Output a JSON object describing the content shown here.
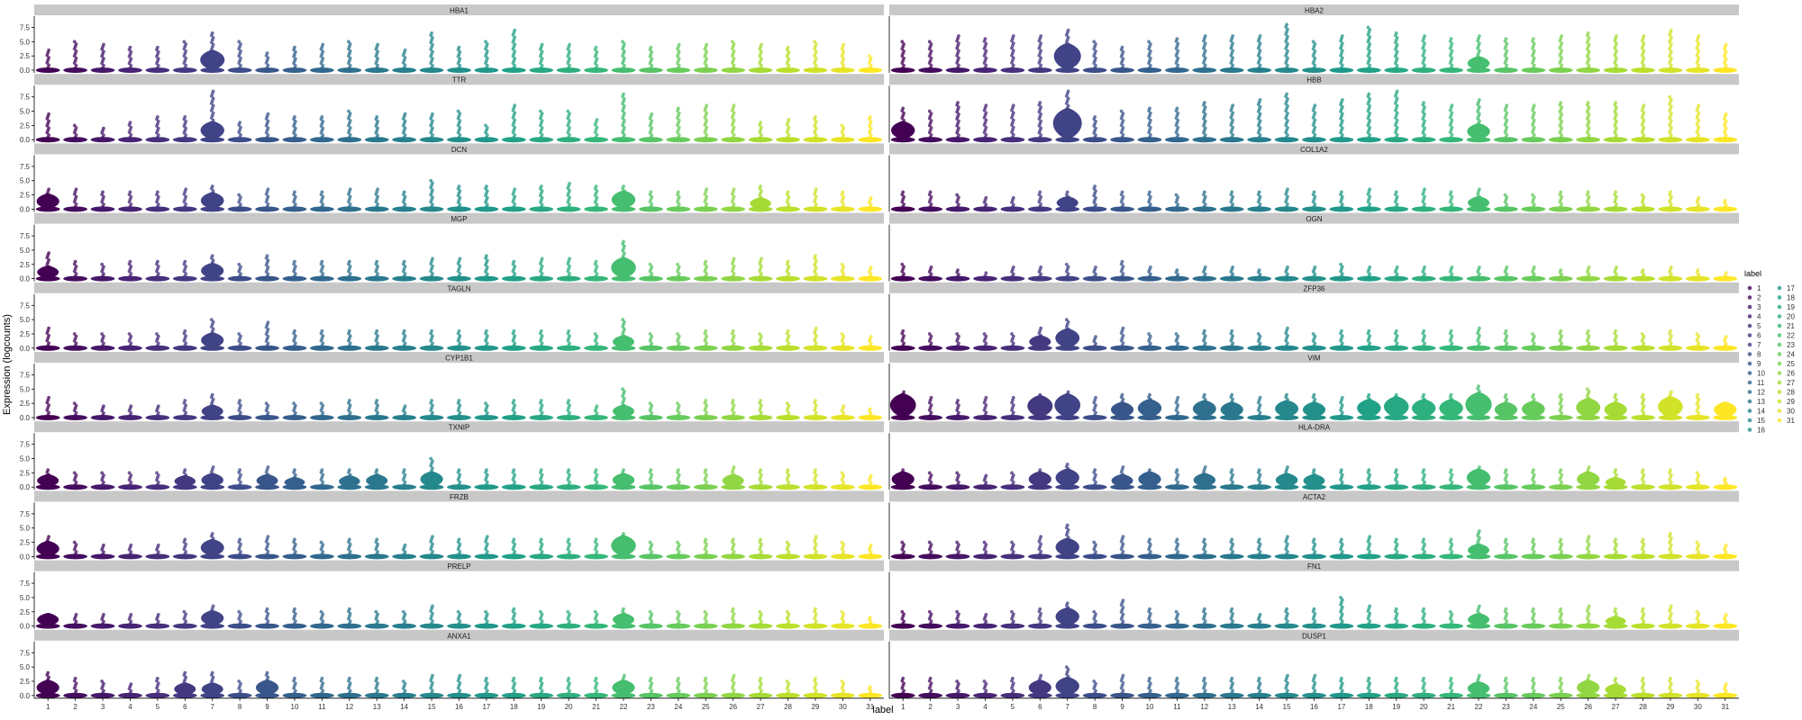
{
  "chart_data": {
    "type": "violin",
    "xlabel": "label",
    "ylabel": "Expression (logcounts)",
    "categories": [
      "1",
      "2",
      "3",
      "4",
      "5",
      "6",
      "7",
      "8",
      "9",
      "10",
      "11",
      "12",
      "13",
      "14",
      "15",
      "16",
      "17",
      "18",
      "19",
      "20",
      "21",
      "22",
      "23",
      "24",
      "25",
      "26",
      "27",
      "28",
      "29",
      "30",
      "31"
    ],
    "yticks": [
      "0.0",
      "2.5",
      "5.0",
      "7.5"
    ],
    "ylim": [
      0,
      9
    ],
    "legend": {
      "title": "label",
      "position": "right",
      "entries": [
        "1",
        "2",
        "3",
        "4",
        "5",
        "6",
        "7",
        "8",
        "9",
        "10",
        "11",
        "12",
        "13",
        "14",
        "15",
        "16",
        "17",
        "18",
        "19",
        "20",
        "21",
        "22",
        "23",
        "24",
        "25",
        "26",
        "27",
        "28",
        "29",
        "30",
        "31"
      ]
    },
    "colormap": "viridis",
    "colors": {
      "strip_background": "#c8c8c8",
      "viridis_low": "#440154",
      "viridis_high": "#fde725"
    },
    "facets": [
      {
        "gene": "HBA1",
        "max": [
          3.5,
          5,
          4.5,
          4,
          4,
          5,
          6.5,
          5,
          3,
          4,
          4.5,
          5,
          4.5,
          3.5,
          6.5,
          4,
          5,
          7,
          4.5,
          4.5,
          4,
          5,
          4,
          4.5,
          4.5,
          5,
          4.5,
          4,
          5,
          4.5,
          2.5
        ],
        "violin": [
          0,
          0,
          0,
          0,
          0,
          0,
          3.3,
          0,
          0,
          0,
          0,
          0,
          0,
          0,
          0,
          0,
          0,
          0,
          0,
          0,
          0,
          0,
          0,
          0,
          0,
          0,
          0,
          0,
          0,
          0,
          0
        ]
      },
      {
        "gene": "HBA2",
        "max": [
          5,
          5,
          6,
          5.5,
          6,
          6,
          7,
          5,
          4,
          5,
          5.5,
          6,
          6,
          6,
          8,
          5,
          6,
          7.5,
          6.5,
          6,
          5.5,
          6,
          5.5,
          5.5,
          6,
          6.5,
          6,
          6,
          7,
          6,
          4.5
        ],
        "violin": [
          0,
          0,
          0,
          0,
          0,
          0,
          4.5,
          0,
          0,
          0,
          0,
          0,
          0,
          0,
          0,
          0,
          0,
          0,
          0,
          0,
          0,
          2.2,
          0,
          0,
          0,
          0,
          0,
          0,
          0,
          0,
          0
        ]
      },
      {
        "gene": "TTR",
        "max": [
          4.5,
          2.5,
          2,
          3,
          4,
          4,
          8.5,
          3,
          4.5,
          4,
          4,
          5,
          4,
          4.5,
          4.5,
          5,
          2.5,
          6,
          5,
          5,
          3.5,
          8,
          4.5,
          5.5,
          6,
          6,
          3,
          3.5,
          4,
          2.5,
          4
        ],
        "violin": [
          0,
          0,
          0,
          0,
          0,
          0,
          3,
          0,
          0,
          0,
          0,
          0,
          0,
          0,
          0,
          0,
          0,
          0,
          0,
          0,
          0,
          0,
          0,
          0,
          0,
          0,
          0,
          0,
          0,
          0,
          0
        ]
      },
      {
        "gene": "HBB",
        "max": [
          5.5,
          5,
          6.5,
          6,
          6,
          6.5,
          8.5,
          4,
          5,
          5.5,
          5.5,
          6.5,
          6,
          7,
          8,
          6,
          7,
          8,
          8.5,
          6.5,
          6,
          7,
          6,
          6,
          6.5,
          6.5,
          6.5,
          6,
          7.5,
          6,
          4.5
        ],
        "violin": [
          3,
          0,
          0,
          0,
          0,
          0,
          5.3,
          0,
          0,
          0,
          0,
          0,
          0,
          0,
          0,
          0,
          0,
          0,
          0,
          0,
          0,
          2.6,
          0,
          0,
          0,
          0,
          0,
          0,
          0,
          0,
          0
        ]
      },
      {
        "gene": "DCN",
        "max": [
          3.5,
          3.5,
          3,
          3,
          3,
          3.5,
          4,
          2.5,
          3.5,
          3,
          3,
          3.5,
          3.5,
          3,
          5,
          4,
          4,
          3.5,
          4,
          4.5,
          4,
          4,
          3,
          3,
          3.5,
          3.5,
          4,
          3,
          3.5,
          3,
          2
        ],
        "violin": [
          2.5,
          0,
          0,
          0,
          0,
          0,
          2.7,
          0,
          0,
          0,
          0,
          0,
          0,
          0,
          0,
          0,
          0,
          0,
          0,
          0,
          0,
          3,
          0,
          0,
          0,
          0,
          1.8,
          0,
          0,
          0,
          0
        ]
      },
      {
        "gene": "COL1A2",
        "max": [
          3,
          3,
          2.5,
          2,
          2,
          3,
          3,
          4,
          3,
          3,
          2.5,
          3,
          3,
          3,
          3.5,
          3,
          3,
          3.5,
          3,
          3.5,
          3,
          3.5,
          2.5,
          2.5,
          3,
          3,
          3,
          2.5,
          3,
          2,
          1.5
        ],
        "violin": [
          0,
          0,
          0,
          0,
          0,
          0,
          2,
          0,
          0,
          0,
          0,
          0,
          0,
          0,
          0,
          0,
          0,
          0,
          0,
          0,
          0,
          2,
          0,
          0,
          0,
          0,
          0,
          0,
          0,
          0,
          0
        ]
      },
      {
        "gene": "MGP",
        "max": [
          4.5,
          3,
          2.5,
          3,
          3,
          3,
          4,
          2.5,
          4,
          3,
          3,
          3,
          3,
          3,
          3.5,
          3.5,
          4,
          3,
          3.5,
          3.5,
          3,
          6.5,
          2.5,
          2.5,
          3,
          3.5,
          3.5,
          3,
          4,
          2.5,
          2
        ],
        "violin": [
          2,
          0,
          0,
          0,
          0,
          0,
          2.5,
          0,
          0,
          0,
          0,
          0,
          0,
          0,
          0,
          0,
          0,
          0,
          0,
          0,
          0,
          3.5,
          0,
          0,
          0,
          0,
          0,
          0,
          0,
          0,
          0
        ]
      },
      {
        "gene": "OGN",
        "max": [
          2.5,
          2,
          1.5,
          1,
          2,
          2,
          2.5,
          2,
          3,
          2,
          1.5,
          2,
          2,
          1.5,
          2,
          2,
          2.5,
          2,
          2,
          2,
          2,
          2,
          2,
          2,
          1.5,
          2,
          2,
          1.5,
          2,
          1.5,
          1
        ],
        "violin": [
          0,
          0,
          0,
          0,
          0,
          0,
          0,
          0,
          0,
          0,
          0,
          0,
          0,
          0,
          0,
          0,
          0,
          0,
          0,
          0,
          0,
          0,
          0,
          0,
          0,
          0,
          0,
          0,
          0,
          0,
          0
        ]
      },
      {
        "gene": "TAGLN",
        "max": [
          3.5,
          2.5,
          2.5,
          2.5,
          2.5,
          3,
          5,
          2.5,
          4.5,
          3,
          3,
          3,
          3,
          3,
          3,
          3,
          3,
          3,
          3,
          3,
          2.5,
          5,
          2.5,
          2.5,
          3,
          3,
          2.5,
          3,
          3.5,
          2.5,
          2
        ],
        "violin": [
          0,
          0,
          0,
          0,
          0,
          0,
          2.5,
          0,
          0,
          0,
          0,
          0,
          0,
          0,
          0,
          0,
          0,
          0,
          0,
          0,
          0,
          2,
          0,
          0,
          0,
          0,
          0,
          0,
          0,
          0,
          0
        ]
      },
      {
        "gene": "ZFP36",
        "max": [
          3,
          2.5,
          2.5,
          2.5,
          2.5,
          3.5,
          5,
          2,
          3.5,
          2.5,
          2.5,
          3,
          3,
          2.5,
          3.5,
          2.5,
          3,
          3,
          3,
          3,
          3,
          3.5,
          3,
          2.5,
          3,
          3,
          3,
          2.5,
          3,
          2.5,
          2
        ],
        "violin": [
          0,
          0,
          0,
          0,
          0,
          2,
          3.2,
          0,
          0,
          0,
          0,
          0,
          0,
          0,
          0,
          0,
          0,
          0,
          0,
          0,
          0,
          0,
          0,
          0,
          0,
          0,
          0,
          0,
          0,
          0,
          0
        ]
      },
      {
        "gene": "CYP1B1",
        "max": [
          3.5,
          2.5,
          2,
          2,
          2,
          3,
          4,
          3,
          2.5,
          2.5,
          2.5,
          3,
          3,
          2,
          3,
          3,
          2.5,
          3,
          3,
          3,
          2,
          5,
          2.5,
          2.5,
          3,
          3,
          3,
          2.5,
          3,
          2,
          1.5
        ],
        "violin": [
          0,
          0,
          0,
          0,
          0,
          0,
          2,
          0,
          0,
          0,
          0,
          0,
          0,
          0,
          0,
          0,
          0,
          0,
          0,
          0,
          0,
          2,
          0,
          0,
          0,
          0,
          0,
          0,
          0,
          0,
          0
        ]
      },
      {
        "gene": "VIM",
        "max": [
          4.5,
          3.5,
          3,
          3.5,
          3.5,
          4,
          4.5,
          3.5,
          4,
          4,
          3.5,
          4,
          4,
          3.5,
          4,
          4,
          3.5,
          4,
          4,
          4,
          4,
          5.5,
          4,
          4,
          4,
          5,
          4,
          4,
          4.5,
          4,
          2.5
        ],
        "violin": [
          4,
          0,
          0,
          0,
          0,
          3.7,
          4,
          0,
          2.5,
          3,
          0,
          2.8,
          2.5,
          0,
          2.8,
          2.5,
          0,
          3,
          3.5,
          3,
          3,
          4.2,
          2.5,
          2.7,
          0,
          3.2,
          2.5,
          0,
          3.5,
          0,
          2.5
        ]
      },
      {
        "gene": "TXNIP",
        "max": [
          3,
          2.5,
          2.5,
          2.5,
          2.5,
          3,
          3.5,
          3,
          3.5,
          3,
          3,
          3,
          3,
          3,
          5,
          3,
          3,
          3,
          3,
          3,
          3,
          3,
          3,
          3,
          3,
          3.5,
          3,
          3,
          3,
          2.5,
          2
        ],
        "violin": [
          2,
          0,
          0,
          0,
          0,
          1.8,
          2.2,
          0,
          2,
          1.5,
          0,
          1.8,
          2,
          0,
          2.5,
          0,
          0,
          0,
          0,
          0,
          0,
          2.2,
          0,
          0,
          0,
          2,
          0,
          0,
          0,
          0,
          0
        ]
      },
      {
        "gene": "HLA-DRA",
        "max": [
          3,
          2.5,
          2.5,
          2,
          2.5,
          3,
          4,
          3,
          3.5,
          3,
          3,
          3.5,
          3,
          3,
          3.5,
          3,
          3,
          3,
          3,
          3,
          3,
          3.5,
          3,
          3,
          3,
          3.5,
          3,
          3,
          3,
          2.5,
          1.5
        ],
        "violin": [
          2.5,
          0,
          0,
          0,
          0,
          2.5,
          3,
          0,
          2,
          2.5,
          0,
          2.2,
          0,
          0,
          2.2,
          2,
          0,
          0,
          0,
          0,
          0,
          3,
          0,
          0,
          0,
          2.5,
          1.5,
          0,
          0,
          0,
          0
        ]
      },
      {
        "gene": "FRZB",
        "max": [
          3.5,
          2.5,
          2,
          2,
          2,
          3,
          4,
          3,
          3.5,
          3,
          2.5,
          3,
          3,
          2,
          3.5,
          3,
          3.5,
          3,
          3,
          3,
          3,
          4,
          2.5,
          2.5,
          3,
          3,
          3,
          2.5,
          3.5,
          2.5,
          2
        ],
        "violin": [
          2.5,
          0,
          0,
          0,
          0,
          0,
          2.8,
          0,
          0,
          0,
          0,
          0,
          0,
          0,
          0,
          0,
          0,
          0,
          0,
          0,
          0,
          3.5,
          0,
          0,
          0,
          0,
          0,
          0,
          0,
          0,
          0
        ]
      },
      {
        "gene": "ACTA2",
        "max": [
          2.5,
          2.5,
          2.5,
          2.5,
          2.5,
          3.5,
          5.5,
          2.5,
          3.5,
          3,
          3,
          3,
          3,
          3,
          3.5,
          3,
          3,
          3.5,
          3,
          3,
          3,
          4.5,
          3,
          3,
          3,
          3.5,
          3,
          3,
          4,
          2.5,
          2
        ],
        "violin": [
          0,
          0,
          0,
          0,
          0,
          0,
          3,
          0,
          0,
          0,
          0,
          0,
          0,
          0,
          0,
          0,
          0,
          0,
          0,
          0,
          0,
          2,
          0,
          0,
          0,
          0,
          0,
          0,
          0,
          0,
          0
        ]
      },
      {
        "gene": "PRELP",
        "max": [
          2,
          2,
          2,
          2,
          2,
          2.5,
          3.5,
          2.5,
          3,
          3,
          2.5,
          3,
          2.5,
          2.5,
          3.5,
          2.5,
          2.5,
          3,
          2.5,
          2.5,
          2.5,
          3,
          2.5,
          2.5,
          2.5,
          3,
          2.5,
          2.5,
          3,
          2.5,
          1.5
        ],
        "violin": [
          2,
          0,
          0,
          0,
          0,
          0,
          2.5,
          0,
          0,
          0,
          0,
          0,
          0,
          0,
          0,
          0,
          0,
          0,
          0,
          0,
          0,
          2,
          0,
          0,
          0,
          0,
          0,
          0,
          0,
          0,
          0
        ]
      },
      {
        "gene": "FN1",
        "max": [
          2.5,
          2.5,
          2.5,
          2,
          2.5,
          3,
          4,
          2.5,
          4.5,
          3,
          2.5,
          3,
          3,
          2,
          3,
          3,
          5,
          3.5,
          3,
          3,
          2.5,
          3.5,
          3,
          3,
          3,
          3.5,
          3,
          3,
          3.5,
          2.5,
          2
        ],
        "violin": [
          0,
          0,
          0,
          0,
          0,
          0,
          3,
          0,
          0,
          0,
          0,
          0,
          0,
          0,
          0,
          0,
          0,
          0,
          0,
          0,
          0,
          2,
          0,
          0,
          0,
          0,
          1.5,
          0,
          0,
          0,
          0
        ]
      },
      {
        "gene": "ANXA1",
        "max": [
          4,
          3,
          2.5,
          2,
          3,
          4,
          4,
          2.5,
          4,
          3,
          3,
          3,
          3,
          2.5,
          3.5,
          3.5,
          3,
          3,
          3,
          3,
          3,
          3.5,
          3,
          3,
          3,
          3.5,
          3,
          2.5,
          3,
          2.5,
          1.5
        ],
        "violin": [
          2.5,
          0,
          0,
          0,
          0,
          2,
          2,
          0,
          2.5,
          0,
          0,
          0,
          0,
          0,
          0,
          0,
          0,
          0,
          0,
          0,
          0,
          2.5,
          0,
          0,
          0,
          0,
          0,
          0,
          0,
          0,
          0
        ]
      },
      {
        "gene": "DUSP1",
        "max": [
          3,
          3,
          2.5,
          2.5,
          3,
          3.5,
          5,
          2.5,
          3.5,
          3,
          3,
          3,
          3,
          3,
          3.5,
          3.5,
          3,
          3,
          3,
          3,
          3,
          3.5,
          3,
          3,
          3,
          3.5,
          3,
          3,
          3,
          2.5,
          2
        ],
        "violin": [
          0,
          0,
          0,
          0,
          0,
          2.5,
          3,
          0,
          0,
          0,
          0,
          0,
          0,
          0,
          0,
          0,
          0,
          0,
          0,
          0,
          0,
          2.2,
          0,
          0,
          0,
          2.5,
          1.8,
          0,
          0,
          0,
          0
        ]
      }
    ]
  }
}
